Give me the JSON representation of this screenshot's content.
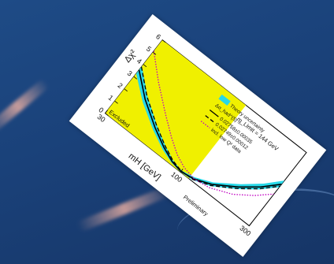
{
  "chart_data": {
    "type": "line",
    "title": "",
    "xlabel": "mH [GeV]",
    "ylabel": "Δχ²",
    "xlim": [
      30,
      300
    ],
    "ylim": [
      0,
      6
    ],
    "x_log": true,
    "x_ticks": [
      "30",
      "100",
      "300"
    ],
    "y_ticks": [
      "0",
      "1",
      "2",
      "3",
      "4",
      "5",
      "6"
    ],
    "excluded_region": {
      "label": "Excluded",
      "x_max": 114,
      "color": "#f0f000"
    },
    "band": {
      "name": "Theory uncertainty",
      "color": "#28d8e8",
      "x": [
        30,
        40,
        55,
        70,
        85,
        100,
        120,
        150,
        200,
        250,
        300
      ],
      "lower": [
        3.25,
        2.05,
        1.05,
        0.45,
        0.12,
        0.0,
        0.08,
        0.48,
        1.38,
        2.25,
        3.15
      ],
      "upper": [
        3.85,
        2.55,
        1.45,
        0.75,
        0.3,
        0.12,
        0.3,
        0.78,
        1.78,
        2.72,
        3.7
      ]
    },
    "series": [
      {
        "name": "0.02758±0.00035",
        "style": "solid",
        "color": "#000000",
        "x": [
          30,
          40,
          55,
          70,
          85,
          100,
          120,
          150,
          200,
          250,
          300
        ],
        "y": [
          3.55,
          2.3,
          1.25,
          0.6,
          0.2,
          0.05,
          0.18,
          0.62,
          1.55,
          2.45,
          3.4
        ]
      },
      {
        "name": "0.02749±0.00012",
        "style": "dashed",
        "color": "#000000",
        "x": [
          30,
          40,
          55,
          70,
          85,
          100,
          120,
          150,
          200,
          250,
          300
        ],
        "y": [
          3.8,
          2.5,
          1.42,
          0.72,
          0.28,
          0.08,
          0.12,
          0.52,
          1.42,
          2.3,
          3.25
        ]
      },
      {
        "name": "incl. low Q² data",
        "style": "dotted",
        "color": "#c000c0",
        "x": [
          30,
          40,
          55,
          70,
          85,
          100,
          120,
          150,
          200,
          250,
          300
        ],
        "y": [
          5.1,
          3.7,
          2.35,
          1.4,
          0.75,
          0.38,
          0.2,
          0.35,
          0.95,
          1.75,
          2.6
        ]
      }
    ],
    "legend": {
      "header": "Δα_had^(5) =",
      "placement": "top-right"
    },
    "annotation": "m_Limit = 144 GeV",
    "preliminary_label": "Preliminary"
  }
}
